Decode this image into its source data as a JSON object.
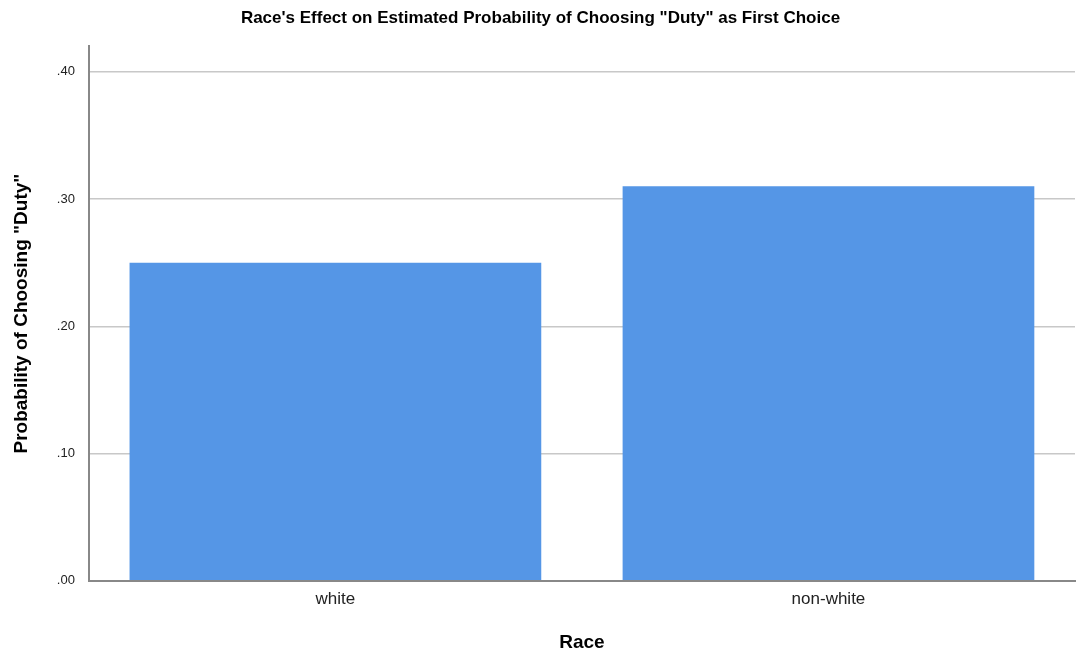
{
  "chart_data": {
    "type": "bar",
    "title": "Race's Effect on Estimated Probability of Choosing \"Duty\" as First Choice",
    "xlabel": "Race",
    "ylabel": "Probability of Choosing \"Duty\"",
    "categories": [
      "white",
      "non-white"
    ],
    "series": [
      {
        "color": "#5596e6",
        "values": [
          0.25,
          0.31
        ]
      }
    ],
    "ylim": [
      0,
      0.42
    ],
    "yticks": [
      {
        "value": 0,
        "label": ".00"
      },
      {
        "value": 0.1,
        "label": ".10"
      },
      {
        "value": 0.2,
        "label": ".20"
      },
      {
        "value": 0.3,
        "label": ".30"
      },
      {
        "value": 0.4,
        "label": ".40"
      }
    ],
    "grid": "y",
    "legend": false
  }
}
